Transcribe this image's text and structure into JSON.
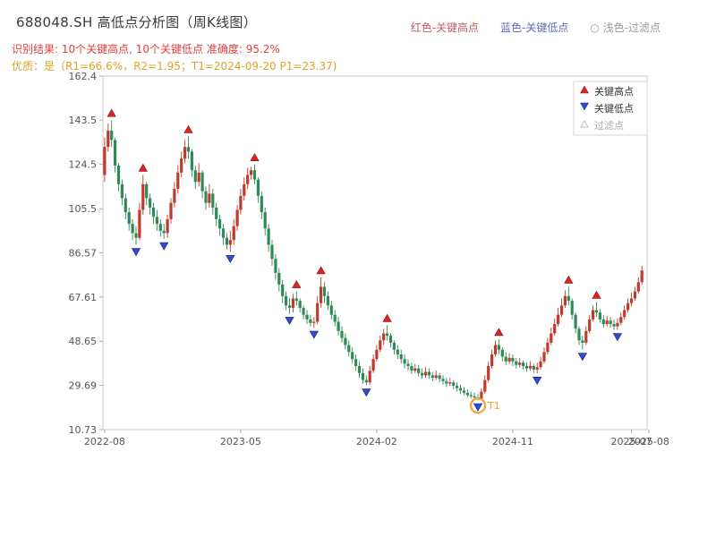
{
  "header": {
    "title": "688048.SH 高低点分析图（周K线图）",
    "top_legend": [
      {
        "label": "红色-关键高点",
        "color": "#c05c5c"
      },
      {
        "label": "蓝色-关键低点",
        "color": "#5c6db8"
      },
      {
        "label": "○ 浅色-过滤点",
        "color": "#9a9a9a"
      }
    ],
    "result_line": "识别结果: 10个关键高点, 10个关键低点  准确度: 95.2%",
    "result_color": "#e04040",
    "quality_line": "优质：是（R1=66.6%，R2=1.95；T1=2024-09-20 P1=23.37)",
    "quality_color": "#dca428"
  },
  "chart_data": {
    "type": "candlestick",
    "title": "688048.SH 高低点分析图（周K线图）",
    "symbol": "688048.SH",
    "period": "weekly",
    "xlabel": "",
    "ylabel": "",
    "x_slots": 156,
    "y_ticks": [
      "162.4",
      "143.5",
      "124.5",
      "105.5",
      "86.57",
      "67.61",
      "48.65",
      "29.69",
      "10.73"
    ],
    "x_ticks": [
      {
        "label": "2022-08",
        "week": 0
      },
      {
        "label": "2023-05",
        "week": 39
      },
      {
        "label": "2024-02",
        "week": 78
      },
      {
        "label": "2024-11",
        "week": 117
      },
      {
        "label": "2025-07",
        "week": 151
      },
      {
        "label": "2025-08",
        "week": 156
      }
    ],
    "colors": {
      "up": "#c0392b",
      "down": "#2e8b57",
      "high_marker": "#e02222",
      "low_marker": "#2f4cd0",
      "filtered": "#cccccc",
      "annotation": "#f0a32f"
    },
    "legend": [
      {
        "label": "关键高点",
        "type": "up-triangle",
        "color": "#e02222"
      },
      {
        "label": "关键低点",
        "type": "down-triangle",
        "color": "#2f4cd0"
      },
      {
        "label": "过滤点",
        "type": "open-triangle",
        "color": "#bbbbbb"
      }
    ],
    "candles": [
      [
        120,
        136,
        117,
        132
      ],
      [
        132,
        142,
        130,
        139
      ],
      [
        139,
        143.5,
        132,
        135
      ],
      [
        135,
        136,
        121,
        124
      ],
      [
        124,
        125,
        113,
        116
      ],
      [
        116,
        118,
        107,
        110
      ],
      [
        110,
        112,
        101,
        104
      ],
      [
        104,
        106,
        96,
        99
      ],
      [
        99,
        101,
        92,
        95
      ],
      [
        95,
        98,
        90,
        93
      ],
      [
        93,
        108,
        92,
        105
      ],
      [
        105,
        120,
        103,
        116
      ],
      [
        116,
        117,
        107,
        110
      ],
      [
        110,
        112,
        103,
        106
      ],
      [
        106,
        108,
        99,
        102
      ],
      [
        102,
        105,
        96,
        99
      ],
      [
        99,
        101,
        93.5,
        96
      ],
      [
        96,
        99,
        92.5,
        95
      ],
      [
        95,
        103,
        93,
        101
      ],
      [
        101,
        110,
        99,
        108
      ],
      [
        108,
        117,
        106,
        114
      ],
      [
        114,
        124,
        112,
        121
      ],
      [
        121,
        130,
        119,
        127
      ],
      [
        127,
        135,
        125,
        132
      ],
      [
        132,
        136.5,
        127,
        130
      ],
      [
        130,
        131,
        119,
        122
      ],
      [
        122,
        124,
        114,
        117
      ],
      [
        117,
        125,
        115,
        121
      ],
      [
        121,
        122,
        110,
        113
      ],
      [
        113,
        115,
        105,
        108
      ],
      [
        108,
        116,
        106,
        112
      ],
      [
        112,
        114,
        103,
        106
      ],
      [
        106,
        108,
        98,
        101
      ],
      [
        101,
        103,
        94,
        97
      ],
      [
        97,
        99,
        90,
        93
      ],
      [
        93,
        95,
        88,
        90
      ],
      [
        90,
        96,
        87,
        92
      ],
      [
        92,
        101,
        90,
        98
      ],
      [
        98,
        107,
        96,
        105
      ],
      [
        105,
        114,
        103,
        111
      ],
      [
        111,
        119,
        109,
        116
      ],
      [
        116,
        123,
        114,
        120
      ],
      [
        120,
        123.5,
        118,
        122
      ],
      [
        122,
        124.5,
        116,
        118
      ],
      [
        118,
        119,
        108,
        111
      ],
      [
        111,
        113,
        101,
        104
      ],
      [
        104,
        106,
        94,
        97
      ],
      [
        97,
        99,
        87,
        90
      ],
      [
        90,
        92,
        81,
        84
      ],
      [
        84,
        86,
        75,
        78
      ],
      [
        78,
        80,
        70,
        73
      ],
      [
        73,
        75,
        65,
        68
      ],
      [
        68,
        70,
        62,
        64
      ],
      [
        64,
        67,
        60.5,
        63
      ],
      [
        63,
        69,
        61,
        67
      ],
      [
        67,
        70,
        64,
        66
      ],
      [
        66,
        67,
        61,
        63
      ],
      [
        63,
        64,
        58,
        60
      ],
      [
        60,
        62,
        56,
        58
      ],
      [
        58,
        60,
        55,
        56.5
      ],
      [
        56.5,
        59,
        54.5,
        57
      ],
      [
        57,
        68,
        56,
        65
      ],
      [
        65,
        76,
        63,
        72
      ],
      [
        72,
        74,
        65,
        68
      ],
      [
        68,
        70,
        62,
        64
      ],
      [
        64,
        66,
        58,
        60
      ],
      [
        60,
        62,
        55,
        57
      ],
      [
        57,
        59,
        51,
        53
      ],
      [
        53,
        55,
        48,
        50
      ],
      [
        50,
        52,
        45,
        47
      ],
      [
        47,
        49,
        42,
        44
      ],
      [
        44,
        46,
        39,
        41
      ],
      [
        41,
        43,
        36,
        38
      ],
      [
        38,
        40,
        33,
        35
      ],
      [
        35,
        37,
        30.5,
        32
      ],
      [
        32,
        34,
        29.7,
        31
      ],
      [
        31,
        38,
        30,
        36
      ],
      [
        36,
        43,
        35,
        41
      ],
      [
        41,
        47,
        40,
        45
      ],
      [
        45,
        51,
        44,
        49
      ],
      [
        49,
        54,
        47,
        52
      ],
      [
        52,
        55.5,
        49,
        51
      ],
      [
        51,
        52,
        46,
        48
      ],
      [
        48,
        49,
        43,
        45
      ],
      [
        45,
        47,
        41,
        43
      ],
      [
        43,
        45,
        39,
        41
      ],
      [
        41,
        43,
        37,
        39
      ],
      [
        39,
        41,
        36,
        38
      ],
      [
        38,
        39.5,
        34.5,
        36
      ],
      [
        36,
        39,
        35,
        37
      ],
      [
        37,
        38.5,
        33.5,
        35
      ],
      [
        35,
        37,
        32.5,
        34
      ],
      [
        34,
        37.5,
        33,
        35.5
      ],
      [
        35.5,
        37,
        32.5,
        34
      ],
      [
        34,
        35.5,
        31.5,
        33
      ],
      [
        33,
        36,
        32,
        34
      ],
      [
        34,
        35,
        31,
        32.5
      ],
      [
        32.5,
        34,
        30,
        31.5
      ],
      [
        31.5,
        33,
        29,
        30.5
      ],
      [
        30.5,
        33,
        29.5,
        31
      ],
      [
        31,
        32,
        28,
        29.5
      ],
      [
        29.5,
        31,
        27,
        28.5
      ],
      [
        28.5,
        30,
        26,
        27.5
      ],
      [
        27.5,
        29,
        25.5,
        26.5
      ],
      [
        26.5,
        28,
        24.5,
        25.5
      ],
      [
        25.5,
        27,
        24,
        25
      ],
      [
        25,
        26.5,
        23.8,
        24.5
      ],
      [
        24.5,
        26,
        23.37,
        24
      ],
      [
        24,
        28.5,
        23.5,
        27
      ],
      [
        27,
        34,
        26,
        32
      ],
      [
        32,
        40,
        31,
        38
      ],
      [
        38,
        45,
        37,
        43
      ],
      [
        43,
        49,
        42,
        47
      ],
      [
        47,
        49.5,
        43,
        45
      ],
      [
        45,
        46,
        40,
        42
      ],
      [
        42,
        44,
        38.5,
        40
      ],
      [
        40,
        43.5,
        39,
        41.5
      ],
      [
        41.5,
        43,
        38,
        40
      ],
      [
        40,
        41.5,
        37,
        38.5
      ],
      [
        38.5,
        41.5,
        37.5,
        39.5
      ],
      [
        39.5,
        40.5,
        36.5,
        38
      ],
      [
        38,
        39.5,
        35.5,
        37
      ],
      [
        37,
        40,
        36,
        38
      ],
      [
        38,
        39,
        35,
        36.5
      ],
      [
        36.5,
        39.5,
        34.8,
        37.5
      ],
      [
        37.5,
        42,
        36.5,
        40
      ],
      [
        40,
        46,
        39,
        44
      ],
      [
        44,
        50,
        43,
        48
      ],
      [
        48,
        54.5,
        47,
        52
      ],
      [
        52,
        58.5,
        51,
        56
      ],
      [
        56,
        63,
        55,
        60
      ],
      [
        60,
        67,
        59,
        64
      ],
      [
        64,
        70.5,
        63,
        68
      ],
      [
        68,
        72,
        64,
        66
      ],
      [
        66,
        67,
        58,
        60
      ],
      [
        60,
        61,
        52,
        54
      ],
      [
        54,
        55,
        47,
        49
      ],
      [
        49,
        51,
        45,
        48
      ],
      [
        48,
        55,
        47,
        53
      ],
      [
        53,
        60,
        52,
        58
      ],
      [
        58,
        64,
        57,
        62
      ],
      [
        62,
        65.5,
        59,
        61
      ],
      [
        61,
        62.5,
        56.5,
        58
      ],
      [
        58,
        60,
        54.5,
        56
      ],
      [
        56,
        59.5,
        55,
        57.5
      ],
      [
        57.5,
        59,
        54.5,
        56
      ],
      [
        56,
        58,
        53.5,
        55
      ],
      [
        55,
        58.5,
        53.5,
        56.5
      ],
      [
        56.5,
        61,
        55.5,
        59
      ],
      [
        59,
        64,
        58,
        62
      ],
      [
        62,
        67,
        61,
        65
      ],
      [
        65,
        69.5,
        63.5,
        67
      ],
      [
        67,
        72,
        66,
        70
      ],
      [
        70,
        76,
        69,
        74
      ],
      [
        74,
        81,
        73,
        79
      ]
    ],
    "high_markers": [
      {
        "week": 2,
        "price": 143.5
      },
      {
        "week": 11,
        "price": 120
      },
      {
        "week": 24,
        "price": 136.5
      },
      {
        "week": 43,
        "price": 124.5
      },
      {
        "week": 55,
        "price": 70
      },
      {
        "week": 62,
        "price": 76
      },
      {
        "week": 81,
        "price": 55.5
      },
      {
        "week": 113,
        "price": 49.5
      },
      {
        "week": 133,
        "price": 72
      },
      {
        "week": 141,
        "price": 65.5
      }
    ],
    "low_markers": [
      {
        "week": 9,
        "price": 90
      },
      {
        "week": 17,
        "price": 92.5
      },
      {
        "week": 36,
        "price": 87
      },
      {
        "week": 53,
        "price": 60.5
      },
      {
        "week": 60,
        "price": 54.5
      },
      {
        "week": 75,
        "price": 29.7
      },
      {
        "week": 107,
        "price": 23.37
      },
      {
        "week": 124,
        "price": 34.8
      },
      {
        "week": 137,
        "price": 45
      },
      {
        "week": 147,
        "price": 53.5
      }
    ],
    "filtered_markers": [],
    "annotation": {
      "label": "T1",
      "week": 107,
      "price": 23.37,
      "date": "2024-09-20"
    }
  }
}
